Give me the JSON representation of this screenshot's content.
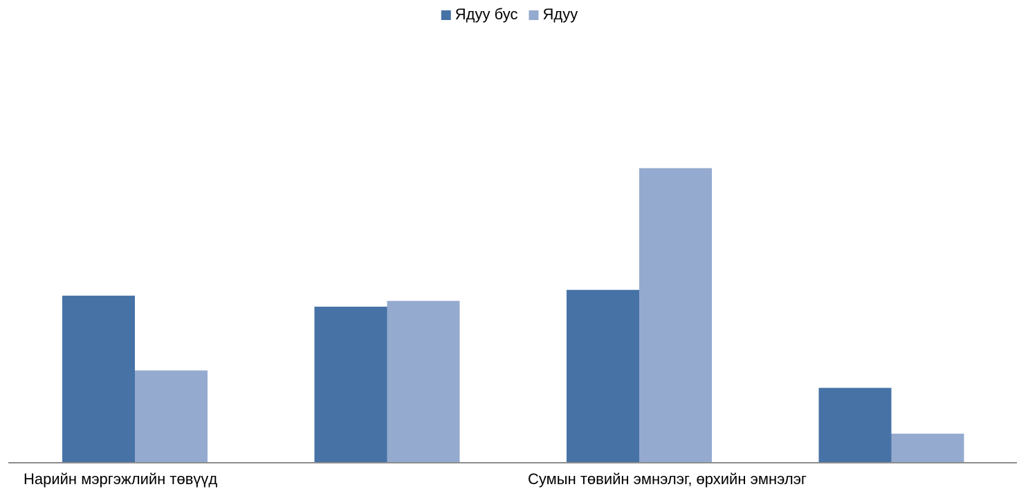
{
  "chart_data": {
    "type": "bar",
    "categories": [
      "Нарийн мэргэжлийн төвүүд",
      "",
      "Сумын төвийн эмнэлэг, өрхийн эмнэлэг",
      ""
    ],
    "series": [
      {
        "name": "Ядуу бус",
        "color": "#4672A6",
        "values": [
          28.7,
          26.8,
          29.7,
          12.8
        ]
      },
      {
        "name": "Ядуу",
        "color": "#95AACF",
        "values": [
          15.8,
          27.8,
          50.7,
          4.9
        ]
      }
    ],
    "ylim": [
      0,
      66
    ],
    "grid": false,
    "legend": "top-center",
    "xlabel": "",
    "ylabel": ""
  }
}
